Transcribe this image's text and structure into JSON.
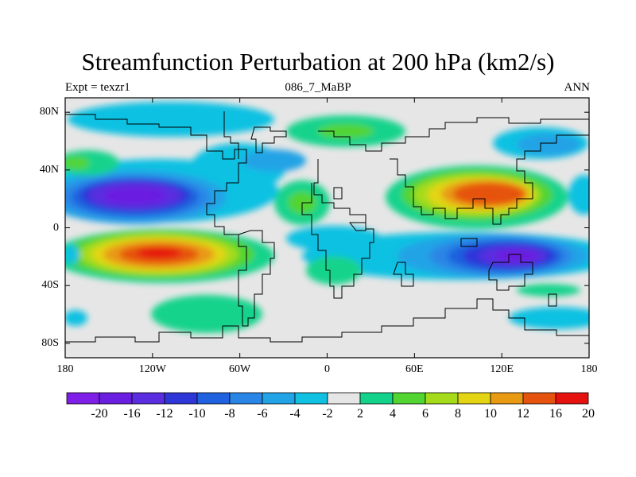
{
  "title": "Streamfunction Perturbation at 200 hPa (km2/s)",
  "subtitle_left": "Expt = texzr1",
  "subtitle_center": "086_7_MaBP",
  "subtitle_right": "ANN",
  "map": {
    "lat_ticks": [
      "80N",
      "40N",
      "0",
      "40S",
      "80S"
    ],
    "lat_values": [
      80,
      40,
      0,
      -40,
      -80
    ],
    "lon_ticks": [
      "180",
      "120W",
      "60W",
      "0",
      "60E",
      "120E",
      "180"
    ],
    "lon_values": [
      -180,
      -120,
      -60,
      0,
      60,
      120,
      180
    ],
    "lat_range": [
      -90,
      90
    ],
    "lon_range": [
      -180,
      180
    ],
    "background_color": "#e6e6e6"
  },
  "colorbar": {
    "labels": [
      "-20",
      "-16",
      "-12",
      "-10",
      "-8",
      "-6",
      "-4",
      "-2",
      "2",
      "4",
      "6",
      "8",
      "10",
      "12",
      "16",
      "20"
    ],
    "colors": [
      "#7e1ee6",
      "#6a1fe0",
      "#5a2ee0",
      "#2e36d8",
      "#1f61de",
      "#2a86e6",
      "#21a3e6",
      "#11c1e2",
      "#e6e6e6",
      "#13d38c",
      "#52d431",
      "#a6db1c",
      "#e3d514",
      "#e89a12",
      "#e6530f",
      "#e6120f"
    ]
  },
  "chart_data": {
    "type": "heatmap",
    "title": "Streamfunction Perturbation at 200 hPa (km2/s)",
    "units": "km2/s",
    "levels": [
      -20,
      -16,
      -12,
      -10,
      -8,
      -6,
      -4,
      -2,
      2,
      4,
      6,
      8,
      10,
      12,
      16,
      20
    ],
    "features": [
      {
        "lon": -130,
        "lat": 25,
        "value": -14
      },
      {
        "lon": -125,
        "lat": -20,
        "value": 18
      },
      {
        "lon": 105,
        "lat": 25,
        "value": 16
      },
      {
        "lon": 125,
        "lat": -22,
        "value": -16
      },
      {
        "lon": 0,
        "lat": 70,
        "value": 5
      },
      {
        "lon": -20,
        "lat": 22,
        "value": 6
      },
      {
        "lon": 15,
        "lat": 20,
        "value": 5
      },
      {
        "lon": -105,
        "lat": -65,
        "value": 5
      },
      {
        "lon": -35,
        "lat": 45,
        "value": -6
      },
      {
        "lon": -5,
        "lat": -10,
        "value": -4
      },
      {
        "lon": 150,
        "lat": 60,
        "value": -5
      },
      {
        "lon": 160,
        "lat": -65,
        "value": -5
      },
      {
        "lon": -165,
        "lat": 45,
        "value": 6
      }
    ]
  }
}
